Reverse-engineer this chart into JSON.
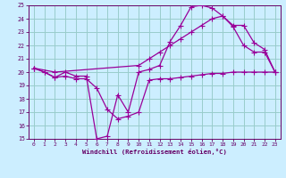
{
  "background_color": "#cceeff",
  "grid_color": "#99cccc",
  "line_color": "#990099",
  "xlabel": "Windchill (Refroidissement éolien,°C)",
  "xlim": [
    -0.5,
    23.5
  ],
  "ylim": [
    15,
    25
  ],
  "yticks": [
    15,
    16,
    17,
    18,
    19,
    20,
    21,
    22,
    23,
    24,
    25
  ],
  "xticks": [
    0,
    1,
    2,
    3,
    4,
    5,
    6,
    7,
    8,
    9,
    10,
    11,
    12,
    13,
    14,
    15,
    16,
    17,
    18,
    19,
    20,
    21,
    22,
    23
  ],
  "line1_x": [
    0,
    1,
    2,
    3,
    4,
    5,
    6,
    7,
    8,
    9,
    10,
    11,
    12,
    13,
    14,
    15,
    16,
    17,
    18,
    19,
    20,
    21,
    22,
    23
  ],
  "line1_y": [
    20.3,
    20.0,
    19.6,
    19.7,
    19.5,
    19.5,
    18.8,
    17.2,
    16.5,
    16.7,
    17.0,
    19.4,
    19.5,
    19.5,
    19.6,
    19.7,
    19.8,
    19.9,
    19.9,
    20.0,
    20.0,
    20.0,
    20.0,
    20.0
  ],
  "line2_x": [
    0,
    1,
    2,
    3,
    4,
    5,
    6,
    7,
    8,
    9,
    10,
    11,
    12,
    13,
    14,
    15,
    16,
    17,
    18,
    19,
    20,
    21,
    22,
    23
  ],
  "line2_y": [
    20.3,
    20.0,
    19.6,
    20.0,
    19.7,
    19.7,
    15.0,
    15.2,
    18.3,
    17.0,
    20.0,
    20.2,
    20.5,
    22.3,
    23.5,
    24.9,
    25.0,
    24.8,
    24.2,
    23.4,
    22.0,
    21.5,
    21.5,
    20.0
  ],
  "line3_x": [
    0,
    2,
    10,
    11,
    12,
    13,
    14,
    15,
    16,
    17,
    18,
    19,
    20,
    21,
    22,
    23
  ],
  "line3_y": [
    20.3,
    20.0,
    20.5,
    21.0,
    21.5,
    22.0,
    22.5,
    23.0,
    23.5,
    24.0,
    24.2,
    23.5,
    23.5,
    22.2,
    21.7,
    20.0
  ]
}
